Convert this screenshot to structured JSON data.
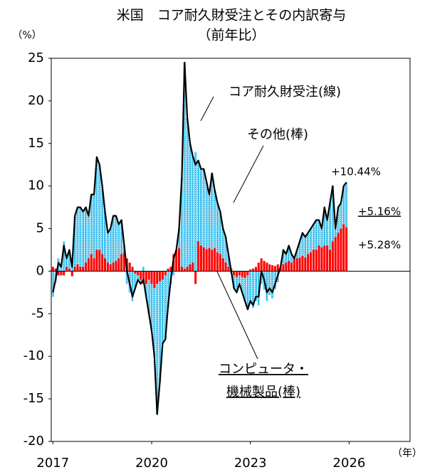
{
  "chart_data": {
    "type": "combo",
    "title": "米国　コア耐久財受注とその内訳寄与",
    "subtitle": "（前年比）",
    "y_unit": "（%）",
    "x_unit": "（年）",
    "xlim": [
      2016.95,
      2027.85
    ],
    "xticks": [
      2017,
      2020,
      2023,
      2026
    ],
    "ylim": [
      -20,
      25
    ],
    "yticks": [
      -20,
      -15,
      -10,
      -5,
      0,
      5,
      10,
      15,
      20,
      25
    ],
    "grid": false,
    "x": [
      2017,
      2017.083,
      2017.167,
      2017.25,
      2017.333,
      2017.417,
      2017.5,
      2017.583,
      2017.667,
      2017.75,
      2017.833,
      2017.917,
      2018,
      2018.083,
      2018.167,
      2018.25,
      2018.333,
      2018.417,
      2018.5,
      2018.583,
      2018.667,
      2018.75,
      2018.833,
      2018.917,
      2019,
      2019.083,
      2019.167,
      2019.25,
      2019.333,
      2019.417,
      2019.5,
      2019.583,
      2019.667,
      2019.75,
      2019.833,
      2019.917,
      2020,
      2020.083,
      2020.167,
      2020.25,
      2020.333,
      2020.417,
      2020.5,
      2020.583,
      2020.667,
      2020.75,
      2020.833,
      2020.917,
      2021,
      2021.083,
      2021.167,
      2021.25,
      2021.333,
      2021.417,
      2021.5,
      2021.583,
      2021.667,
      2021.75,
      2021.833,
      2021.917,
      2022,
      2022.083,
      2022.167,
      2022.25,
      2022.333,
      2022.417,
      2022.5,
      2022.583,
      2022.667,
      2022.75,
      2022.833,
      2022.917,
      2023,
      2023.083,
      2023.167,
      2023.25,
      2023.333,
      2023.417,
      2023.5,
      2023.583,
      2023.667,
      2023.75,
      2023.833,
      2023.917,
      2024,
      2024.083,
      2024.167,
      2024.25,
      2024.333,
      2024.417,
      2024.5,
      2024.583,
      2024.667,
      2024.75,
      2024.833,
      2024.917,
      2025,
      2025.083,
      2025.167,
      2025.25,
      2025.333,
      2025.417,
      2025.5,
      2025.583,
      2025.667,
      2025.75,
      2025.833,
      2025.917
    ],
    "series": [
      {
        "name": "コア耐久財受注(線)",
        "type": "line",
        "color": "#000000",
        "end_label": "+10.44%",
        "values": [
          -2.5,
          -1,
          1,
          0.5,
          3,
          1.5,
          2.5,
          0.5,
          6.5,
          7.5,
          7.5,
          7,
          7.5,
          6.5,
          9,
          9,
          13.4,
          12.5,
          10,
          7,
          4.5,
          5,
          6.5,
          6.5,
          5.5,
          6,
          3,
          0,
          -1.5,
          -3,
          -2,
          -1,
          -1.5,
          -1,
          -3,
          -5,
          -7,
          -10,
          -16.8,
          -13,
          -8.5,
          -8,
          -4,
          -1,
          1.5,
          2.5,
          5,
          11,
          24.5,
          18,
          15,
          13.5,
          12.5,
          13,
          12,
          12,
          10.5,
          9,
          11.5,
          9.5,
          8,
          7,
          5,
          4,
          2,
          0,
          -2,
          -2.5,
          -1.5,
          -2.5,
          -3.5,
          -4.5,
          -3.5,
          -4,
          -3,
          -3,
          0,
          -1,
          -2.5,
          -2,
          -2.5,
          -1.5,
          -0.5,
          0.5,
          2.5,
          2,
          3,
          2,
          1.5,
          2.5,
          3.5,
          4.5,
          4,
          4.5,
          5,
          5.5,
          6,
          6,
          5,
          7.5,
          6,
          8,
          10,
          5,
          7.5,
          8,
          10,
          10.44
        ]
      },
      {
        "name": "コンピュータ・機械製品(棒)",
        "type": "bar",
        "color": "#ff0000",
        "end_label": "+5.16%",
        "values": [
          0.5,
          0.3,
          -0.5,
          -0.5,
          -0.5,
          0.5,
          0.3,
          -0.6,
          0.5,
          0.8,
          0.5,
          0.5,
          1,
          1.5,
          2,
          1.5,
          2.5,
          2.5,
          2,
          1.5,
          1,
          0.8,
          1,
          1.2,
          1.5,
          2,
          2.2,
          1.5,
          1,
          0.5,
          -0.3,
          -0.5,
          -1,
          -1.5,
          -1.5,
          -1,
          -1.5,
          -2,
          -1.5,
          -1.2,
          -1,
          -0.5,
          0.3,
          0.5,
          2,
          2.5,
          2.7,
          0.5,
          0.3,
          0.5,
          0.8,
          1,
          -1.5,
          3.5,
          3,
          2.8,
          2.6,
          2.7,
          2.5,
          2.7,
          2.2,
          2,
          1.5,
          1,
          0.5,
          0.3,
          -0.5,
          -0.7,
          -0.5,
          -0.7,
          -0.8,
          -0.5,
          0.2,
          0.3,
          0.5,
          1,
          1.5,
          1.2,
          1,
          0.8,
          0.7,
          0.6,
          0.8,
          0.5,
          0.8,
          1,
          1.2,
          1,
          1.5,
          1.5,
          1.6,
          1.8,
          1.6,
          2,
          2.2,
          2.5,
          2.5,
          3,
          2.8,
          3,
          3,
          2.5,
          3.5,
          4,
          4.5,
          5,
          5.5,
          5.16
        ]
      },
      {
        "name": "その他(棒)",
        "type": "bar",
        "color": "#3fc0ec",
        "end_label": "+5.28%",
        "values": [
          -3,
          -1.3,
          1.5,
          1,
          3.5,
          1,
          2.2,
          1.1,
          6,
          6.7,
          7,
          6.5,
          6.5,
          5,
          7,
          7.5,
          10.9,
          10,
          8,
          5.5,
          3.5,
          4.2,
          5.5,
          5.3,
          4,
          4,
          0.8,
          -1.5,
          -2.5,
          -3.5,
          -1.7,
          -0.5,
          -0.5,
          0.5,
          -1.5,
          -4,
          -5.5,
          -8,
          -15.3,
          -11.8,
          -7.5,
          -7.5,
          -4.3,
          -1.5,
          -0.5,
          0,
          2.3,
          10.5,
          24.2,
          17.5,
          14.2,
          12.5,
          14,
          9.5,
          9,
          9.2,
          7.9,
          6.3,
          9,
          6.8,
          5.8,
          5,
          3.5,
          3,
          1.5,
          -0.3,
          -1.5,
          -1.8,
          -1,
          -1.8,
          -2.7,
          -4,
          -3.7,
          -4.3,
          -3.5,
          -4,
          -1.5,
          -2.2,
          -3.5,
          -2.8,
          -3.2,
          -2.1,
          -1.3,
          0,
          1.7,
          1,
          1.8,
          1,
          0,
          1,
          1.9,
          2.7,
          2.4,
          2.5,
          2.8,
          3,
          3.5,
          3,
          2.2,
          4.5,
          3,
          5.5,
          6.5,
          1,
          3,
          3,
          4.5,
          5.28
        ]
      }
    ]
  }
}
